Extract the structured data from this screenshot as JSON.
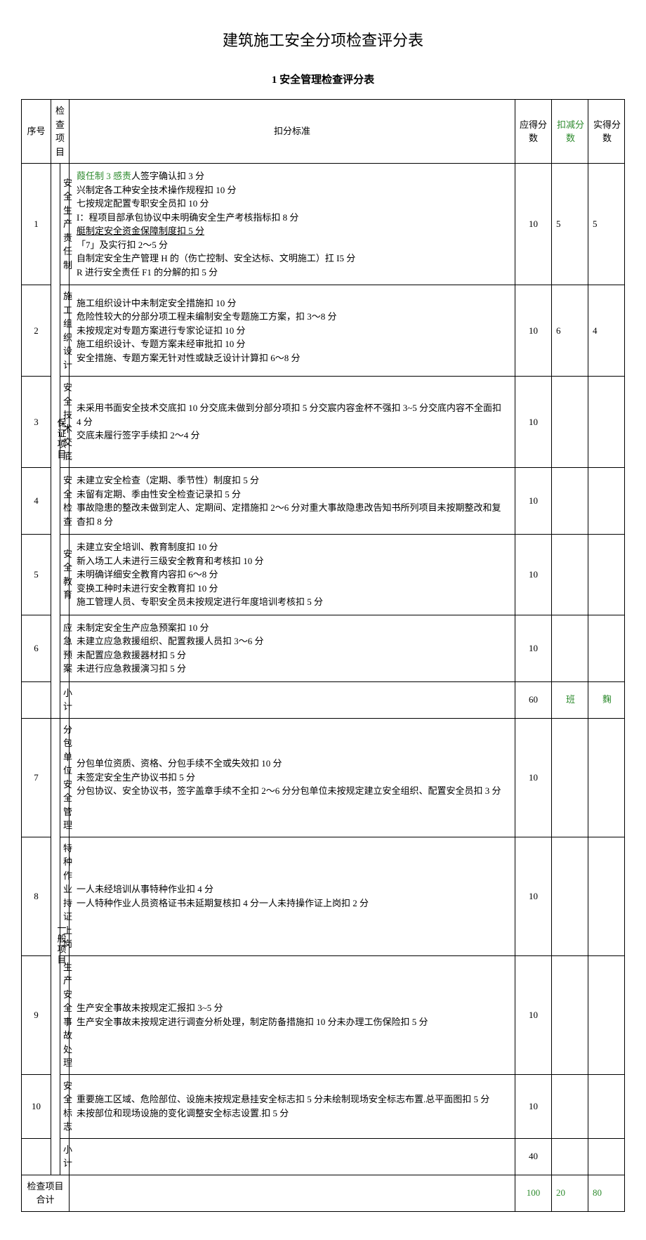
{
  "page_title": "建筑施工安全分项检查评分表",
  "table_title": "1 安全管理检查评分表",
  "headers": {
    "seq": "序号",
    "check_item": "检查项目",
    "deduct_std": "扣分标准",
    "should_score": "应得分数",
    "deduct_score": "扣减分数",
    "actual_score": "实得分数"
  },
  "category1": "保证项目",
  "category2": "一般项目",
  "rows": [
    {
      "seq": "1",
      "item": "安全生产责任制",
      "std_pre": "葭任制 3 ",
      "std_green": "感责",
      "std_post": "人签字确认扣 3 分\n兴制定各工种安全技术操作规程扣 10 分\n七按规定配置专职安全员扣 10 分\nI：程项目部承包协议中未明确安全生产考核指标扣 8 分",
      "std_under": "艇制定安全资金保障制度扣 5 分",
      "std_after": "「7」及实行扣 2～5 分\n自制定安全生产管理 H 的（伤亡控制、安全达标、文明施工）扛 I5 分\nR 进行安全责任 F1 的分解的扣 5 分",
      "score": "10",
      "deduct": "5",
      "actual": "5"
    },
    {
      "seq": "2",
      "item": "施工组织设计",
      "std": "施工组织设计中未制定安全措施扣 10 分\n危险性较大的分部分项工程未编制安全专题施工方案，扣 3～8 分\n未按规定对专题方案进行专家论证扣 10 分\n施工组织设计、专题方案未经审批扣 10 分\n安全措施、专题方案无针对性或缺乏设计计算扣 6～8 分",
      "score": "10",
      "deduct": "6",
      "actual": "4"
    },
    {
      "seq": "3",
      "item": "安全技术交底",
      "std": "未采用书面安全技术交底扣 10 分交底未做到分部分项扣 5 分交宸内容金杯不强扣 3~5 分交底内容不全面扣 4 分\n交底未履行签字手续扣 2～4 分",
      "score": "10",
      "deduct": "",
      "actual": ""
    },
    {
      "seq": "4",
      "item": "安全检查",
      "std": "未建立安全检查（定期、季节性）制度扣 5 分\n未留有定期、季由性安全检查记录扣 5 分\n事故隐患的整改未做到定人、定期间、定措施扣 2～6 分对重大事故隐患改告知书所列项目未按期整改和复杳扣 8 分",
      "score": "10",
      "deduct": "",
      "actual": ""
    },
    {
      "seq": "5",
      "item": "安全教育",
      "std": "未建立安全培训、教育制度扣 10 分\n新入场工人未进行三级安全教育和考核扣 10 分\n未明确详细安全教育内容扣 6～8 分\n变换工种时未进行安全教育扣 10 分\n施工管理人员、专职安全员未按规定进行年度培训考核扣 5 分",
      "score": "10",
      "deduct": "",
      "actual": ""
    },
    {
      "seq": "6",
      "item": "应急预案",
      "std": "未制定安全生产应急预案扣 10 分\n未建立应急救援组织、配置救援人员扣 3～6 分\n未配置应急救援器材扣 5 分\n未进行应急救援演习扣 5 分",
      "score": "10",
      "deduct": "",
      "actual": ""
    }
  ],
  "subtotal1": {
    "label": "小计",
    "score": "60",
    "deduct": "班",
    "actual": "麴"
  },
  "rows2": [
    {
      "seq": "7",
      "item": "分包单位安全管理",
      "std": "分包单位资质、资格、分包手续不全或失效扣 10 分\n未签定安全生产协议书扣 5 分\n分包协议、安全协议书，签字盖章手续不全扣 2～6 分分包单位未按规定建立安全组织、配置安全员扣 3 分",
      "score": "10",
      "deduct": "",
      "actual": ""
    },
    {
      "seq": "8",
      "item": "特种作业持证上岗",
      "std": "一人未经培训从事特种作业扣 4 分\n一人特种作业人员资格证书未延期复核扣 4 分一人未持操作证上岗扣 2 分",
      "score": "10",
      "deduct": "",
      "actual": ""
    },
    {
      "seq": "9",
      "item": "生产安全事故处理",
      "std": "生产安全事故未按规定汇报扣 3~5 分\n生产安全事故未按规定进行调查分析处理，制定防备措施扣 10 分未办理工伤保险扣 5 分",
      "score": "10",
      "deduct": "",
      "actual": ""
    },
    {
      "seq": "10",
      "item": "安全标志",
      "std": "重要施工区域、危险部位、设施未按规定悬挂安全标志扣 5 分未绘制现场安全标志布置.总平面图扣 5 分\n未按部位和现场设施的变化调整安全标志设置.扣 5 分",
      "score": "10",
      "deduct": "",
      "actual": ""
    }
  ],
  "subtotal2": {
    "label": "小计",
    "score": "40",
    "deduct": "",
    "actual": ""
  },
  "total": {
    "label": "检查项目合计",
    "score": "100",
    "deduct": "20",
    "actual": "80"
  },
  "colors": {
    "green": "#2e8b2e",
    "border": "#000000",
    "bg": "#ffffff"
  }
}
